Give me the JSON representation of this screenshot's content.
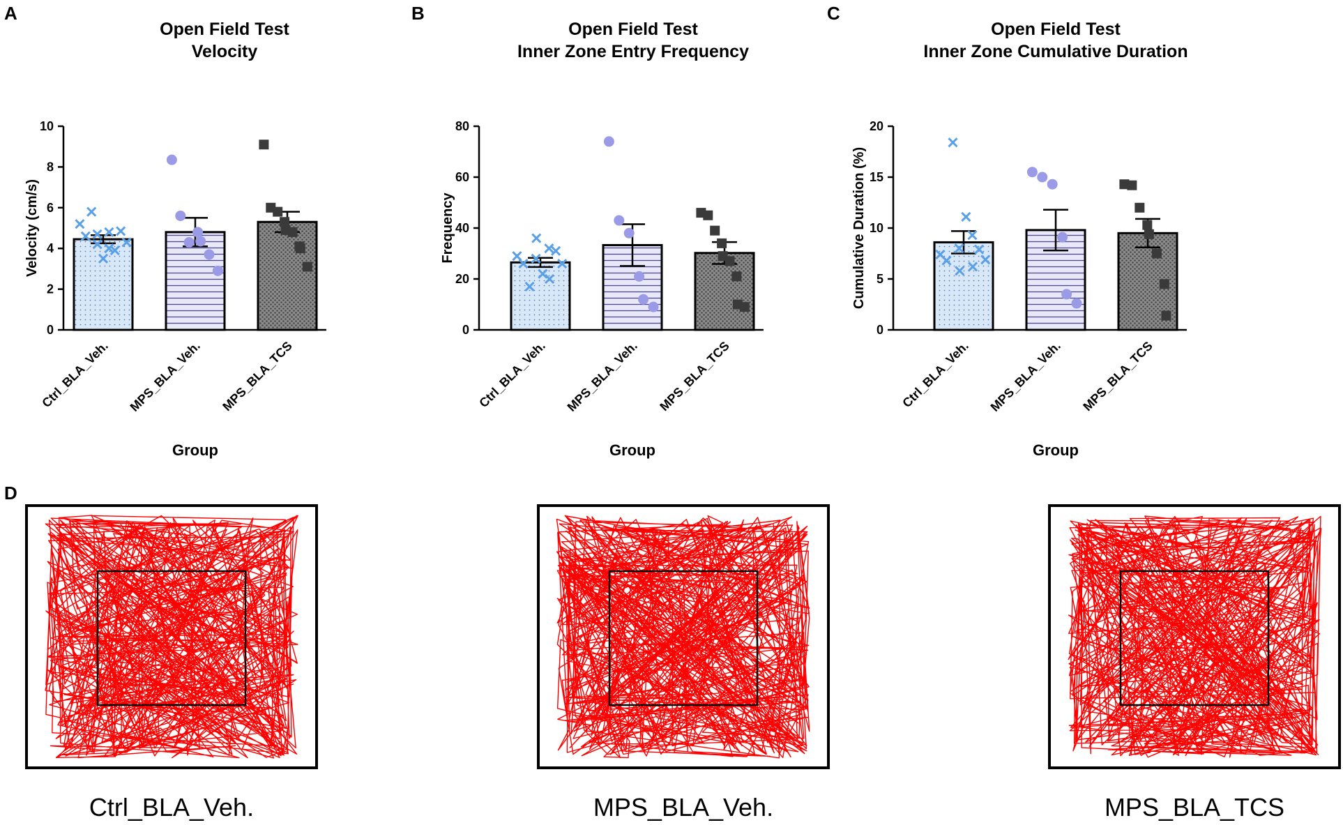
{
  "panel_d_letter": "D",
  "colors": {
    "ctrl": "#5aa0e6",
    "ctrl_fill": "#d9e8f8",
    "mps_veh": "#9a9ae6",
    "mps_veh_fill": "#e8e8f8",
    "mps_tcs": "#3a3a3a",
    "mps_tcs_fill": "#8c8c8c",
    "track": "#ff0000"
  },
  "chart_data": [
    {
      "panel": "A",
      "type": "bar",
      "title": [
        "Open Field Test",
        "Velocity"
      ],
      "xlabel": "Group",
      "ylabel": "Velocity (cm/s)",
      "ylim": [
        0,
        10
      ],
      "yticks": [
        "0",
        "2",
        "4",
        "6",
        "8",
        "10"
      ],
      "categories": [
        "Ctrl_BLA_Veh.",
        "MPS_BLA_Veh.",
        "MPS_BLA_TCS"
      ],
      "values": [
        4.45,
        4.8,
        5.3
      ],
      "sem": [
        0.2,
        0.7,
        0.5
      ],
      "points": [
        [
          5.2,
          4.6,
          5.8,
          4.2,
          4.7,
          3.5,
          4.0,
          4.8,
          3.9,
          4.85,
          4.3
        ],
        [
          8.35,
          5.6,
          4.3,
          4.8,
          4.35,
          3.7,
          2.9
        ],
        [
          9.1,
          6.0,
          5.8,
          5.3,
          4.9,
          4.8,
          4.1,
          4.0,
          3.1
        ]
      ]
    },
    {
      "panel": "B",
      "type": "bar",
      "title": [
        "Open Field Test",
        "Inner Zone Entry Frequency"
      ],
      "xlabel": "Group",
      "ylabel": "Frequency",
      "ylim": [
        0,
        80
      ],
      "yticks": [
        "0",
        "20",
        "40",
        "60",
        "80"
      ],
      "categories": [
        "Ctrl_BLA_Veh.",
        "MPS_BLA_Veh.",
        "MPS_BLA_TCS"
      ],
      "values": [
        26.5,
        33.3,
        30.2
      ],
      "sem": [
        1.8,
        8.2,
        4.3
      ],
      "points": [
        [
          29,
          26,
          17,
          28,
          36,
          22,
          32,
          20,
          31,
          26
        ],
        [
          74,
          43,
          38,
          21,
          12,
          9
        ],
        [
          46,
          45,
          39,
          34,
          29,
          27,
          21,
          10,
          9
        ]
      ]
    },
    {
      "panel": "C",
      "type": "bar",
      "title": [
        "Open Field Test",
        "Inner Zone Cumulative Duration"
      ],
      "xlabel": "Group",
      "ylabel": "Cumulative Duration (%)",
      "ylim": [
        0,
        20
      ],
      "yticks": [
        "0",
        "5",
        "10",
        "15",
        "20"
      ],
      "categories": [
        "Ctrl_BLA_Veh.",
        "MPS_BLA_Veh.",
        "MPS_BLA_TCS"
      ],
      "values": [
        8.6,
        9.8,
        9.5
      ],
      "sem": [
        1.1,
        2.0,
        1.4
      ],
      "points": [
        [
          7.4,
          6.8,
          18.4,
          8.0,
          5.8,
          11.1,
          9.3,
          6.2,
          7.9,
          6.9
        ],
        [
          15.5,
          15.0,
          14.3,
          9.1,
          3.5,
          2.6
        ],
        [
          14.3,
          14.2,
          12.0,
          10.3,
          9.4,
          7.5,
          4.5,
          1.4
        ]
      ]
    }
  ],
  "arenas": [
    {
      "label": "Ctrl_BLA_Veh.",
      "seed": 11
    },
    {
      "label": "MPS_BLA_Veh.",
      "seed": 27
    },
    {
      "label": "MPS_BLA_TCS",
      "seed": 53
    }
  ]
}
